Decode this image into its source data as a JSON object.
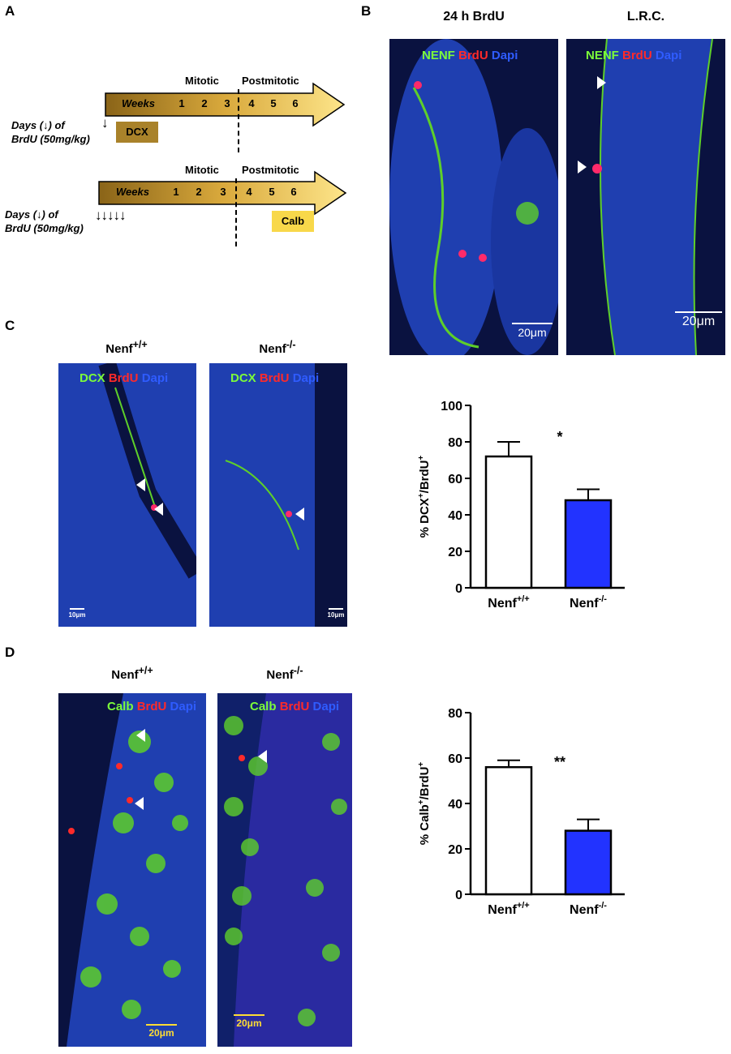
{
  "panels": {
    "a": "A",
    "b": "B",
    "c": "C",
    "d": "D"
  },
  "panel_a": {
    "timeline1": {
      "weeks_label": "Weeks",
      "weeks": [
        "1",
        "2",
        "3",
        "4",
        "5",
        "6"
      ],
      "mitotic": "Mitotic",
      "postmitotic": "Postmitotic",
      "days_line1": "Days (↓) of",
      "days_line2": "BrdU (50mg/kg)",
      "arrows": "↓",
      "marker": "DCX",
      "marker_color": "#a9822a"
    },
    "timeline2": {
      "weeks_label": "Weeks",
      "weeks": [
        "1",
        "2",
        "3",
        "4",
        "5",
        "6"
      ],
      "mitotic": "Mitotic",
      "postmitotic": "Postmitotic",
      "days_line1": "Days (↓) of",
      "days_line2": "BrdU (50mg/kg)",
      "arrows": "↓↓↓↓↓",
      "marker": "Calb",
      "marker_color": "#f8d84a"
    }
  },
  "panel_b": {
    "titles": [
      "24 h BrdU",
      "L.R.C."
    ],
    "legend": [
      "NENF",
      "BrdU",
      "Dapi"
    ],
    "scalebars": [
      "20μm",
      "20μm"
    ]
  },
  "panel_c": {
    "genotype_base": "Nenf",
    "genotypes": [
      "+/+",
      "-/-"
    ],
    "legend": [
      "DCX",
      "BrdU",
      "Dapi"
    ],
    "scalebars": [
      "10μm",
      "10μm"
    ]
  },
  "panel_d": {
    "genotype_base": "Nenf",
    "genotypes": [
      "+/+",
      "-/-"
    ],
    "legend": [
      "Calb",
      "BrdU",
      "Dapi"
    ],
    "scalebars": [
      "20μm",
      "20μm"
    ]
  },
  "colors": {
    "wt_bar": "#ffffff",
    "ko_bar": "#2233ff",
    "green": "#7CFC3A",
    "red": "#ff2a2a",
    "blue": "#2f5cff"
  },
  "chart_data": [
    {
      "type": "bar",
      "categories": [
        "Nenf+/+",
        "Nenf-/-"
      ],
      "values": [
        72,
        48
      ],
      "errors": [
        8,
        6
      ],
      "ylabel": "% DCX+/BrdU+",
      "ylim": [
        0,
        100
      ],
      "yticks": [
        0,
        20,
        40,
        60,
        80,
        100
      ],
      "significance": "*"
    },
    {
      "type": "bar",
      "categories": [
        "Nenf+/+",
        "Nenf-/-"
      ],
      "values": [
        56,
        28
      ],
      "errors": [
        3,
        5
      ],
      "ylabel": "% Calb+/BrdU+",
      "ylim": [
        0,
        80
      ],
      "yticks": [
        0,
        20,
        40,
        60,
        80
      ],
      "significance": "**"
    }
  ]
}
